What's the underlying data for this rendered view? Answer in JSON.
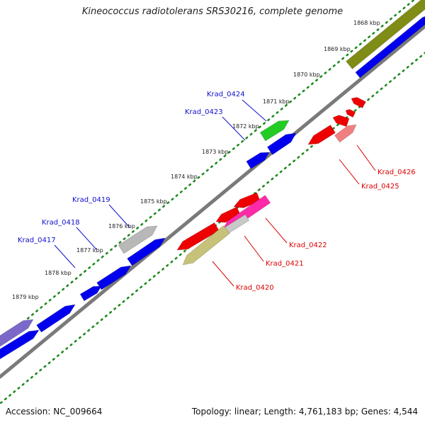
{
  "title": "Kineococcus radiotolerans SRS30216, complete genome",
  "footer": {
    "accession": "Accession: NC_009664",
    "topology": "Topology: linear; Length: 4,761,183 bp; Genes: 4,544"
  },
  "colors": {
    "backbone": "#7a7a7a",
    "forward_dots": "#1e8a1e",
    "reverse_dots": "#1e8a1e",
    "forward_label": "#1010cc",
    "reverse_label": "#dd0000"
  },
  "ticks": [
    "1868 kbp",
    "1869 kbp",
    "1870 kbp",
    "1871 kbp",
    "1872 kbp",
    "1873 kbp",
    "1874 kbp",
    "1875 kbp",
    "1876 kbp",
    "1877 kbp",
    "1878 kbp",
    "1879 kbp"
  ],
  "forward_labels": [
    {
      "id": "Krad_0424",
      "name": "Krad_0424"
    },
    {
      "id": "Krad_0423",
      "name": "Krad_0423"
    },
    {
      "id": "Krad_0419",
      "name": "Krad_0419"
    },
    {
      "id": "Krad_0418",
      "name": "Krad_0418"
    },
    {
      "id": "Krad_0417",
      "name": "Krad_0417"
    }
  ],
  "reverse_labels": [
    {
      "id": "Krad_0426",
      "name": "Krad_0426"
    },
    {
      "id": "Krad_0425",
      "name": "Krad_0425"
    },
    {
      "id": "Krad_0422",
      "name": "Krad_0422"
    },
    {
      "id": "Krad_0421",
      "name": "Krad_0421"
    },
    {
      "id": "Krad_0420",
      "name": "Krad_0420"
    }
  ],
  "forward_genes": [
    {
      "name": "forward-gene-olive",
      "color": "#7f8c16"
    },
    {
      "name": "forward-gene-blue-top",
      "color": "#0000ee"
    },
    {
      "name": "forward-gene-krad0424",
      "color": "#22cc22"
    },
    {
      "name": "forward-gene-krad0423",
      "color": "#0000ee"
    },
    {
      "name": "forward-gene-small-blue",
      "color": "#0000ee"
    },
    {
      "name": "forward-gene-krad0419",
      "color": "#b8b8b8"
    },
    {
      "name": "forward-gene-blue-middle",
      "color": "#0000ee"
    },
    {
      "name": "forward-gene-krad0418",
      "color": "#0000ee"
    },
    {
      "name": "forward-gene-krad0417",
      "color": "#0000ee"
    },
    {
      "name": "forward-gene-blue-lower",
      "color": "#0000ee"
    },
    {
      "name": "forward-gene-purple",
      "color": "#7b68c8"
    },
    {
      "name": "forward-gene-blue-bottom",
      "color": "#0000ee"
    }
  ],
  "reverse_genes": [
    {
      "name": "reverse-gene-red-small-a",
      "color": "#ee0000"
    },
    {
      "name": "reverse-gene-red-small-b",
      "color": "#ee0000"
    },
    {
      "name": "reverse-gene-red-small-c",
      "color": "#ee0000"
    },
    {
      "name": "reverse-gene-krad0426",
      "color": "#ee0000"
    },
    {
      "name": "reverse-gene-krad0425",
      "color": "#f08080"
    },
    {
      "name": "reverse-gene-red-large-a",
      "color": "#ee0000"
    },
    {
      "name": "reverse-gene-red-large-b",
      "color": "#ee0000"
    },
    {
      "name": "reverse-gene-krad0422",
      "color": "#ee0000"
    },
    {
      "name": "reverse-gene-krad0421",
      "color": "#ff2aa8"
    },
    {
      "name": "reverse-gene-light-gray",
      "color": "#c8c8c8"
    },
    {
      "name": "reverse-gene-krad0420",
      "color": "#c7c27a"
    }
  ]
}
